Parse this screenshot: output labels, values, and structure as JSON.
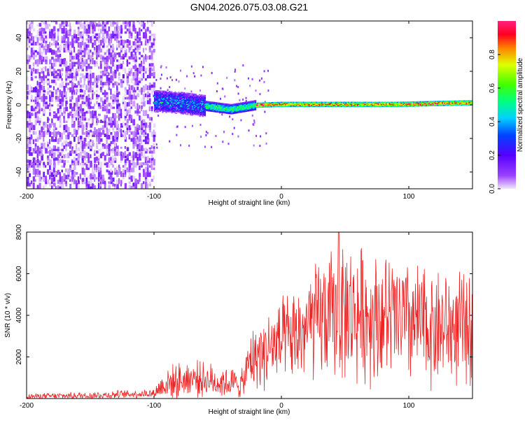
{
  "figure": {
    "title": "GN04.2026.075.03.08.G21"
  },
  "chart_data": [
    {
      "type": "heatmap",
      "name": "spectrogram",
      "title": "GN04.2026.075.03.08.G21",
      "xlabel": "Height of straight line (km)",
      "ylabel": "Frequency (Hz)",
      "xlim": [
        -200,
        150
      ],
      "ylim": [
        -50,
        50
      ],
      "xticks": [
        -200,
        -100,
        0,
        100
      ],
      "xtick_labels": [
        "-200",
        "-100",
        "0",
        "100"
      ],
      "yticks": [
        -40,
        -20,
        0,
        20,
        40
      ],
      "ytick_labels": [
        "-40",
        "-20",
        "0",
        "20",
        "40"
      ],
      "colorbar": {
        "label": "Normalized spectral amplitude",
        "range": [
          0,
          1
        ],
        "ticks": [
          0,
          0.2,
          0.4,
          0.6,
          0.8
        ],
        "tick_labels": [
          "0.0",
          "0.2",
          "0.4",
          "0.6",
          "0.8"
        ],
        "colormap": "rainbow (violet to red, high end magenta)"
      },
      "regions": [
        {
          "x_range": [
            -200,
            -100
          ],
          "description": "broadband noise",
          "freq_range": [
            -50,
            50
          ],
          "amplitude": [
            0.0,
            0.15
          ]
        },
        {
          "x_range": [
            -100,
            -60
          ],
          "description": "widening signal",
          "freq_range": [
            -10,
            8
          ],
          "amplitude": [
            0.1,
            0.45
          ]
        },
        {
          "x_range": [
            -60,
            -20
          ],
          "description": "narrowing signal",
          "freq_range": [
            -4,
            3
          ],
          "amplitude": [
            0.3,
            0.6
          ]
        },
        {
          "x_range": [
            -20,
            150
          ],
          "description": "strong tone near 0 Hz",
          "freq_range": [
            -2,
            2
          ],
          "amplitude": [
            0.6,
            0.95
          ]
        }
      ],
      "tone_center_hz": [
        {
          "x": -100,
          "f": 2
        },
        {
          "x": -80,
          "f": 1
        },
        {
          "x": -60,
          "f": -1
        },
        {
          "x": -40,
          "f": -3
        },
        {
          "x": -20,
          "f": -0.5
        },
        {
          "x": 0,
          "f": 0
        },
        {
          "x": 30,
          "f": 0
        },
        {
          "x": 60,
          "f": 0
        },
        {
          "x": 90,
          "f": 0
        },
        {
          "x": 120,
          "f": 0.5
        },
        {
          "x": 150,
          "f": 1
        }
      ]
    },
    {
      "type": "line",
      "name": "snr",
      "xlabel": "Height of straight line (km)",
      "ylabel": "SNR (10 * v/v)",
      "xlim": [
        -200,
        150
      ],
      "ylim": [
        0,
        8000
      ],
      "xticks": [
        -200,
        -100,
        0,
        100
      ],
      "xtick_labels": [
        "-200",
        "-100",
        "0",
        "100"
      ],
      "yticks": [
        2000,
        4000,
        6000,
        8000
      ],
      "ytick_labels": [
        "2000",
        "4000",
        "6000",
        "8000"
      ],
      "series": [
        {
          "name": "SNR",
          "color": "#ee2222",
          "envelope": [
            {
              "x": -200,
              "mean": 100,
              "spread": 150
            },
            {
              "x": -150,
              "mean": 150,
              "spread": 200
            },
            {
              "x": -100,
              "mean": 250,
              "spread": 250
            },
            {
              "x": -92,
              "mean": 700,
              "spread": 900
            },
            {
              "x": -70,
              "mean": 1000,
              "spread": 1000
            },
            {
              "x": -50,
              "mean": 800,
              "spread": 900
            },
            {
              "x": -30,
              "mean": 700,
              "spread": 800
            },
            {
              "x": -25,
              "mean": 1800,
              "spread": 1600
            },
            {
              "x": -10,
              "mean": 2400,
              "spread": 2200
            },
            {
              "x": 10,
              "mean": 2900,
              "spread": 2600
            },
            {
              "x": 30,
              "mean": 3800,
              "spread": 3400
            },
            {
              "x": 50,
              "mean": 4200,
              "spread": 3800
            },
            {
              "x": 80,
              "mean": 3900,
              "spread": 3600
            },
            {
              "x": 110,
              "mean": 3500,
              "spread": 3400
            },
            {
              "x": 150,
              "mean": 3300,
              "spread": 3000
            }
          ],
          "peak": {
            "x": 45,
            "y": 8000
          }
        }
      ]
    }
  ]
}
